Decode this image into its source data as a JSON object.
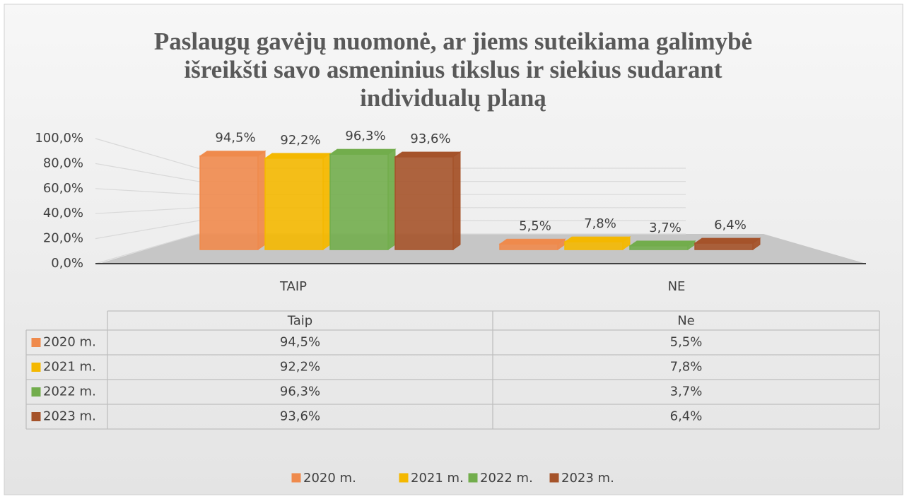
{
  "chart_data": {
    "type": "bar3d",
    "title": [
      "Paslaugų gavėjų nuomonė, ar jiems suteikiama galimybė",
      "išreikšti savo asmeninius tikslus ir siekius sudarant",
      "individualų planą"
    ],
    "categories": [
      "TAIP",
      "NE"
    ],
    "table_categories": [
      "Taip",
      "Ne"
    ],
    "series": [
      {
        "name": "2020 m.",
        "color": "#ef8a4c",
        "values": [
          94.5,
          5.5
        ],
        "value_labels": [
          "94,5%",
          "5,5%"
        ]
      },
      {
        "name": "2021 m.",
        "color": "#f4b800",
        "values": [
          92.2,
          7.8
        ],
        "value_labels": [
          "92,2%",
          "7,8%"
        ]
      },
      {
        "name": "2022 m.",
        "color": "#72ad4c",
        "values": [
          96.3,
          3.7
        ],
        "value_labels": [
          "96,3%",
          "3,7%"
        ]
      },
      {
        "name": "2023 m.",
        "color": "#a5532a",
        "values": [
          93.6,
          6.4
        ],
        "value_labels": [
          "93,6%",
          "6,4%"
        ]
      }
    ],
    "ylim": [
      0,
      100
    ],
    "yticks": [
      {
        "value": 0,
        "label": "0,0%"
      },
      {
        "value": 20,
        "label": "20,0%"
      },
      {
        "value": 40,
        "label": "40,0%"
      },
      {
        "value": 60,
        "label": "60,0%"
      },
      {
        "value": 80,
        "label": "80,0%"
      },
      {
        "value": 100,
        "label": "100,0%"
      }
    ],
    "grid": true,
    "legend": "bottom",
    "data_table": true
  }
}
